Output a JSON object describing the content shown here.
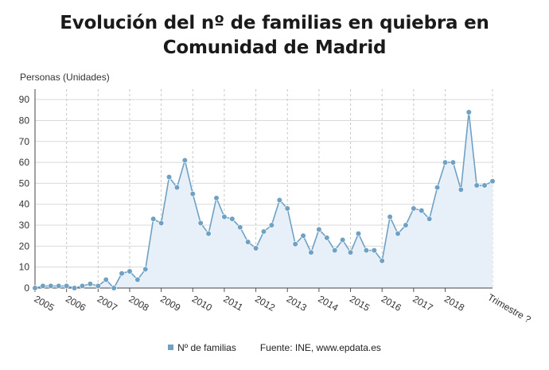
{
  "title": "Evolución del nº de familias en quiebra en Comunidad de Madrid",
  "yaxis_label": "Personas (Unidades)",
  "legend": {
    "series_name": "Nº de familias",
    "source": "Fuente: INE, www.epdata.es"
  },
  "colors": {
    "line": "#6fa1c4",
    "marker": "#6fa1c4",
    "area": "#e7f0f8",
    "grid": "#d9d9d9"
  },
  "chart_data": {
    "type": "area",
    "title": "Evolución del nº de familias en quiebra en Comunidad de Madrid",
    "ylabel": "Personas (Unidades)",
    "xlabel": "Trimestre ?",
    "ylim": [
      0,
      95
    ],
    "yticks": [
      0,
      10,
      20,
      30,
      40,
      50,
      60,
      70,
      80,
      90
    ],
    "grid": true,
    "legend_position": "bottom",
    "year_labels": [
      "2005",
      "2006",
      "2007",
      "2008",
      "2009",
      "2010",
      "2011",
      "2012",
      "2013",
      "2014",
      "2015",
      "2016",
      "2017",
      "2018"
    ],
    "quarters_per_year": 4,
    "series": [
      {
        "name": "Nº de familias",
        "values": [
          0,
          1,
          1,
          1,
          1,
          0,
          1,
          2,
          1,
          4,
          0,
          7,
          8,
          4,
          9,
          33,
          31,
          53,
          48,
          61,
          45,
          31,
          26,
          43,
          34,
          33,
          29,
          22,
          19,
          27,
          30,
          42,
          38,
          21,
          25,
          17,
          28,
          24,
          18,
          23,
          17,
          26,
          18,
          18,
          13,
          34,
          26,
          30,
          38,
          37,
          33,
          48,
          60,
          60,
          47,
          84,
          49,
          49,
          51
        ]
      }
    ]
  }
}
